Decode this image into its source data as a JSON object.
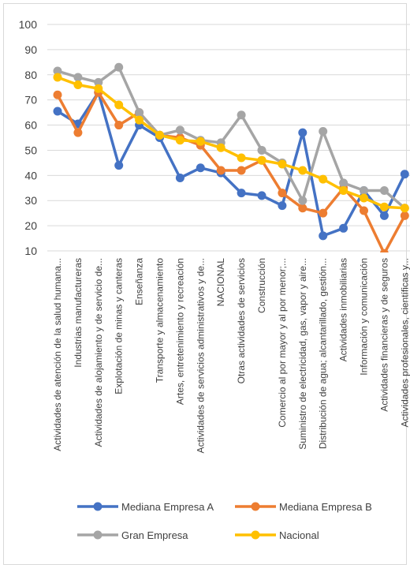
{
  "chart_data": {
    "type": "line",
    "categories": [
      "Actividades de atención de la salud humana...",
      "Industrias manufactureras",
      "Actividades de alojamiento y de servicio de...",
      "Explotación de minas y canteras",
      "Enseñanza",
      "Transporte y almacenamiento",
      "Artes, entretenimiento y recreación",
      "Actividades de servicios administrativos y de...",
      "NACIONAL",
      "Otras actividades de servicios",
      "Construcción",
      "Comercio al por mayor y al por menor;...",
      "Suministro de electricidad, gas, vapor y aire...",
      "Distribución de agua; alcantarillado, gestión...",
      "Actividades inmobiliarias",
      "Información y comunicación",
      "Actividades financieras y de seguros",
      "Actividades profesionales, científicas y..."
    ],
    "series": [
      {
        "name": "Mediana Empresa A",
        "color": "#4472C4",
        "values": [
          65.5,
          60.5,
          73,
          44,
          60,
          55,
          39,
          43,
          41,
          33,
          32,
          28,
          57,
          16,
          19,
          34,
          24,
          40.5
        ]
      },
      {
        "name": "Mediana Empresa B",
        "color": "#ED7D31",
        "values": [
          72,
          57,
          73,
          60,
          65,
          56,
          55,
          52,
          42,
          42,
          46,
          33,
          27,
          25,
          35,
          26,
          9,
          24
        ]
      },
      {
        "name": "Gran Empresa",
        "color": "#A5A5A5",
        "values": [
          81.5,
          79,
          77,
          83,
          65,
          56,
          58,
          54,
          53,
          64,
          50,
          45,
          30,
          57.5,
          37,
          34,
          34,
          27
        ]
      },
      {
        "name": "Nacional",
        "color": "#FFC000",
        "values": [
          79,
          76,
          74.5,
          68,
          62,
          56,
          54,
          53.5,
          51,
          47,
          46,
          44.5,
          42,
          38.5,
          34,
          31,
          27.5,
          27
        ]
      }
    ],
    "yticks": [
      10,
      20,
      30,
      40,
      50,
      60,
      70,
      80,
      90,
      100
    ],
    "ylim": [
      10,
      100
    ],
    "grid": true,
    "legend_position": "bottom"
  }
}
